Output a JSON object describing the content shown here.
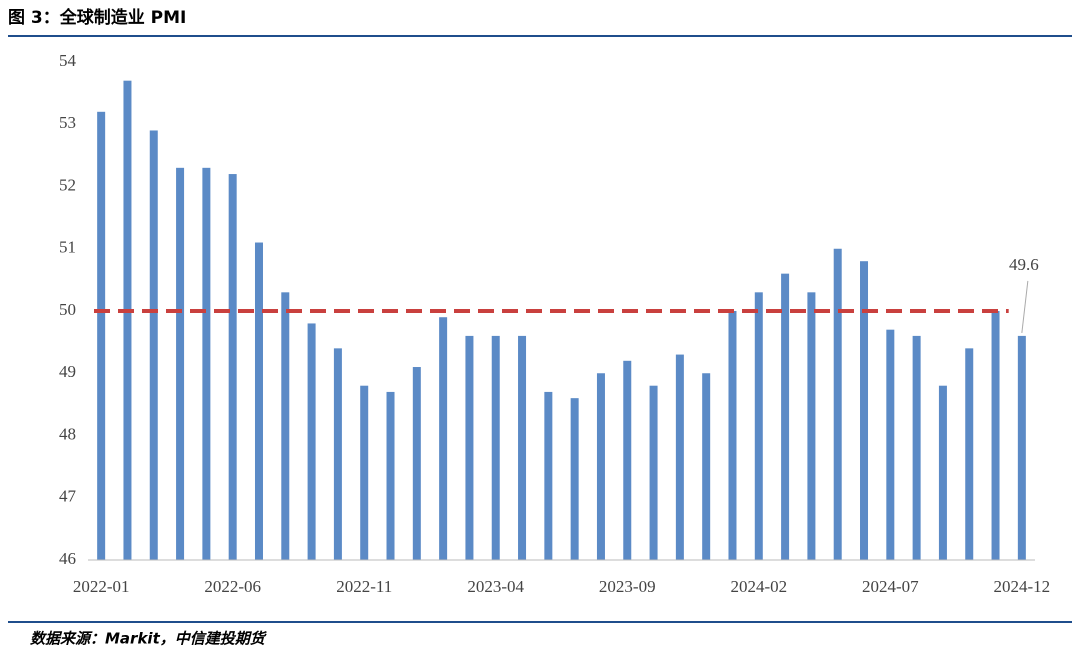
{
  "chart_data": {
    "type": "bar",
    "title": "图 3：全球制造业 PMI",
    "source": "数据来源：Markit，中信建投期货",
    "categories": [
      "2022-01",
      null,
      null,
      null,
      null,
      "2022-06",
      null,
      null,
      null,
      null,
      "2022-11",
      null,
      null,
      null,
      null,
      "2023-04",
      null,
      null,
      null,
      null,
      "2023-09",
      null,
      null,
      null,
      null,
      "2024-02",
      null,
      null,
      null,
      null,
      "2024-07",
      null,
      null,
      null,
      null,
      "2024-12"
    ],
    "values": [
      53.2,
      53.7,
      52.9,
      52.3,
      52.3,
      52.2,
      51.1,
      50.3,
      49.8,
      49.4,
      48.8,
      48.7,
      49.1,
      49.9,
      49.6,
      49.6,
      49.6,
      48.7,
      48.6,
      49.0,
      49.2,
      48.8,
      49.3,
      49.0,
      50.0,
      50.3,
      50.6,
      50.3,
      51.0,
      50.8,
      49.7,
      49.6,
      48.8,
      49.4,
      50.0,
      49.6
    ],
    "value_labels": [
      null,
      null,
      null,
      null,
      null,
      null,
      null,
      null,
      null,
      null,
      null,
      null,
      null,
      null,
      null,
      null,
      null,
      null,
      null,
      null,
      null,
      null,
      null,
      null,
      null,
      null,
      null,
      null,
      null,
      null,
      null,
      null,
      null,
      null,
      null,
      "49.6"
    ],
    "color": "#5b8ac6",
    "ylim": [
      46,
      54
    ],
    "yticks": [
      46,
      47,
      48,
      49,
      50,
      51,
      52,
      53,
      54
    ],
    "grid": false,
    "reference_line": {
      "value": 50,
      "color": "#c9403e",
      "style": "dashed"
    }
  }
}
